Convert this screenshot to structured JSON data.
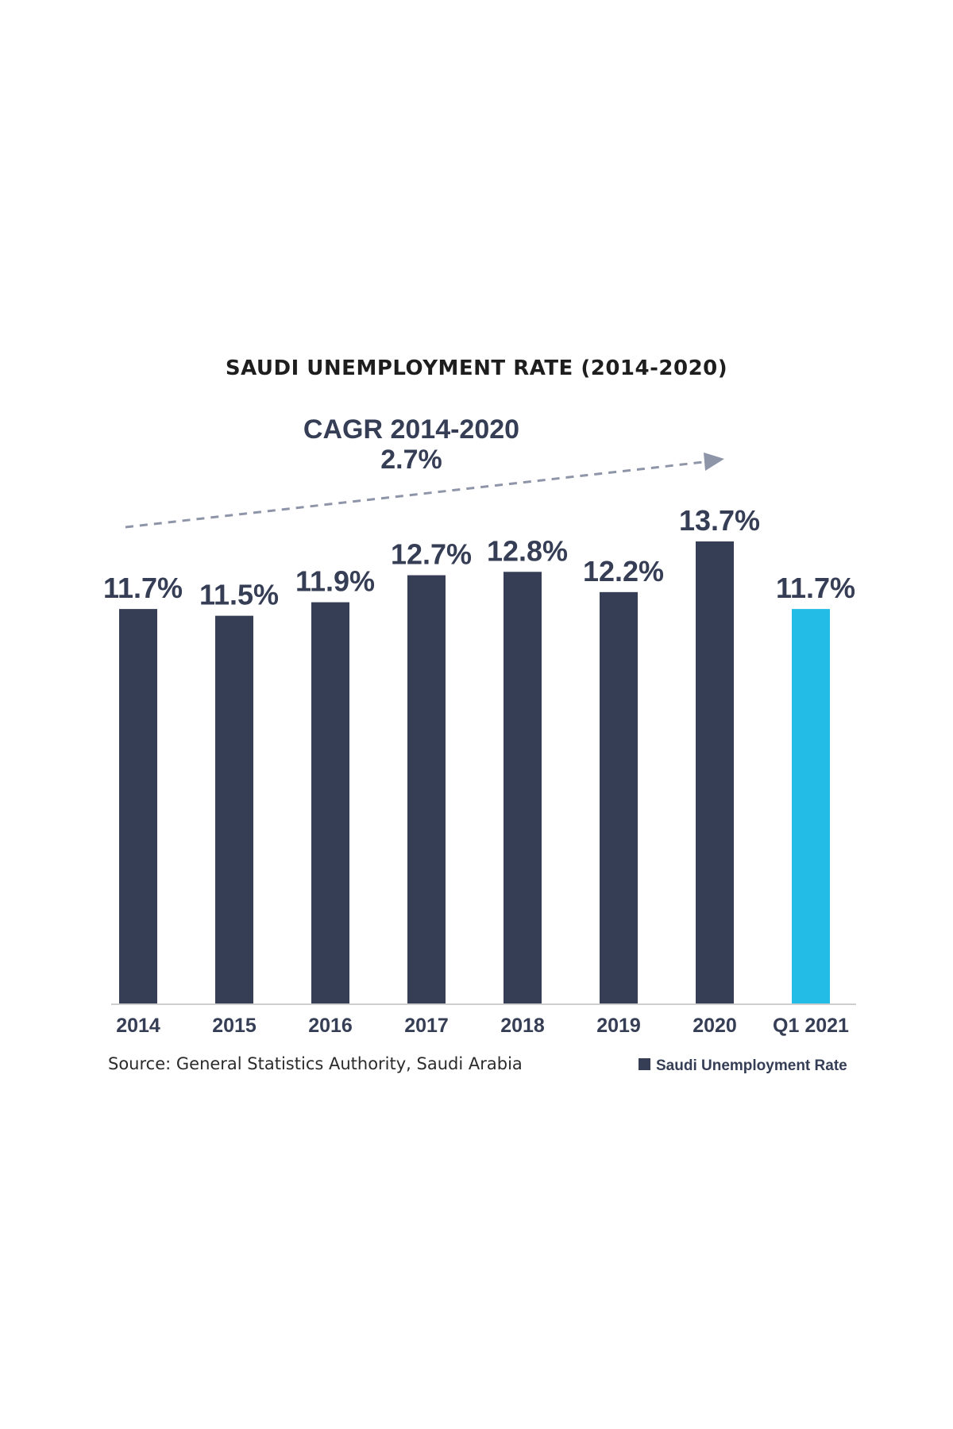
{
  "chart_data": {
    "type": "bar",
    "title": "SAUDI UNEMPLOYMENT RATE (2014-2020)",
    "categories": [
      "2014",
      "2015",
      "2016",
      "2017",
      "2018",
      "2019",
      "2020",
      "Q1 2021"
    ],
    "series": [
      {
        "name": "Saudi Unemployment Rate",
        "values": [
          11.7,
          11.5,
          11.9,
          12.7,
          12.8,
          12.2,
          13.7,
          11.7
        ],
        "labels": [
          "11.7%",
          "11.5%",
          "11.9%",
          "12.7%",
          "12.8%",
          "12.2%",
          "13.7%",
          "11.7%"
        ]
      }
    ],
    "highlight_index": 7,
    "ylim": [
      0,
      13.7
    ],
    "xlabel": "",
    "ylabel": "",
    "grid": false,
    "legend_position": "bottom-right",
    "annotation": {
      "line1": "CAGR 2014-2020",
      "line2": "2.7%"
    },
    "source": "Source: General Statistics Authority, Saudi Arabia",
    "legend_label": "Saudi Unemployment Rate",
    "colors": {
      "bar": "#363e56",
      "highlight": "#22bce6",
      "trend": "#8e95a8",
      "axis": "#cfcfcf"
    }
  }
}
